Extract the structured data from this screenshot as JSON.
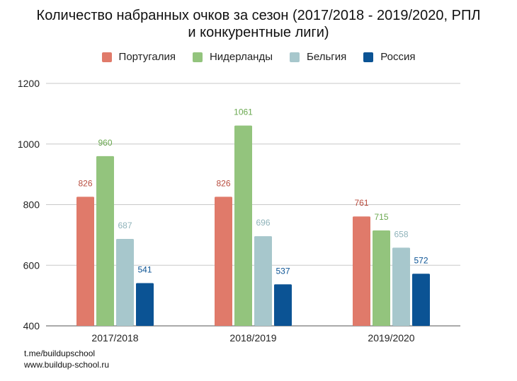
{
  "chart_data": {
    "type": "bar",
    "title": [
      "Количество набранных очков за сезон (2017/2018 - 2019/2020, РПЛ",
      "и конкурентные лиги)"
    ],
    "categories": [
      "2017/2018",
      "2018/2019",
      "2019/2020"
    ],
    "series": [
      {
        "name": "Португалия",
        "color": "#e07a6a",
        "label_color": "#b84c3e",
        "values": [
          826,
          826,
          761
        ]
      },
      {
        "name": "Нидерланды",
        "color": "#93c47d",
        "label_color": "#6aa84f",
        "values": [
          960,
          1061,
          715
        ]
      },
      {
        "name": "Бельгия",
        "color": "#a7c7cc",
        "label_color": "#8fb3ba",
        "values": [
          687,
          696,
          658
        ]
      },
      {
        "name": "Россия",
        "color": "#0b5394",
        "label_color": "#0b5394",
        "values": [
          541,
          537,
          572
        ]
      }
    ],
    "ylim": [
      400,
      1200
    ],
    "yticks": [
      400,
      600,
      800,
      1000,
      1200
    ],
    "grid": true,
    "legend_position": "top-center",
    "xlabel": "",
    "ylabel": ""
  },
  "footer": {
    "line1": "t.me/buildupschool",
    "line2": "www.buildup-school.ru"
  }
}
